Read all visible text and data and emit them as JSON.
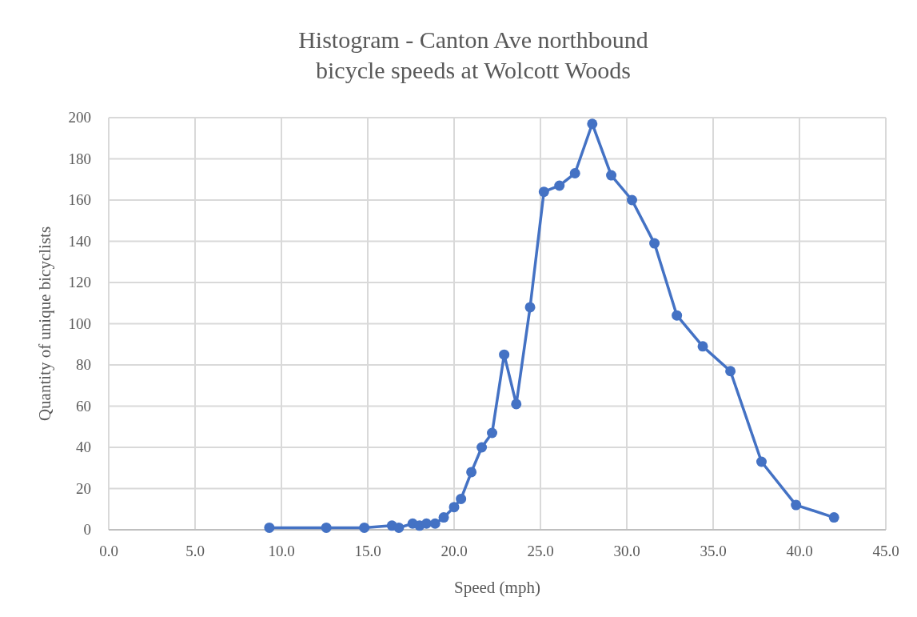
{
  "chart_data": {
    "type": "line",
    "title": "Histogram - Canton Ave northbound\nbicycle speeds at Wolcott Woods",
    "xlabel": "Speed (mph)",
    "ylabel": "Quantity of unique bicyclists",
    "x": [
      9.3,
      12.6,
      14.8,
      16.4,
      16.8,
      17.6,
      18.0,
      18.4,
      18.9,
      19.4,
      20.0,
      20.4,
      21.0,
      21.6,
      22.2,
      22.9,
      23.6,
      24.4,
      25.2,
      26.1,
      27.0,
      28.0,
      29.1,
      30.3,
      31.6,
      32.9,
      34.4,
      36.0,
      37.8,
      39.8,
      42.0
    ],
    "series": [
      {
        "color": "#4472c4",
        "values": [
          1,
          1,
          1,
          2,
          1,
          3,
          2,
          3,
          3,
          6,
          11,
          15,
          28,
          40,
          47,
          85,
          61,
          108,
          164,
          167,
          173,
          197,
          172,
          160,
          139,
          104,
          89,
          77,
          33,
          12,
          6
        ]
      }
    ],
    "xlim": [
      0,
      45
    ],
    "xticks": [
      {
        "value": 0,
        "label": "0.0"
      },
      {
        "value": 5,
        "label": "5.0"
      },
      {
        "value": 10,
        "label": "10.0"
      },
      {
        "value": 15,
        "label": "15.0"
      },
      {
        "value": 20,
        "label": "20.0"
      },
      {
        "value": 25,
        "label": "25.0"
      },
      {
        "value": 30,
        "label": "30.0"
      },
      {
        "value": 35,
        "label": "35.0"
      },
      {
        "value": 40,
        "label": "40.0"
      },
      {
        "value": 45,
        "label": "45.0"
      }
    ],
    "ylim": [
      0,
      200
    ],
    "yticks": [
      0,
      20,
      40,
      60,
      80,
      100,
      120,
      140,
      160,
      180,
      200
    ],
    "grid": true,
    "marker": "circle",
    "line_style": "solid"
  }
}
